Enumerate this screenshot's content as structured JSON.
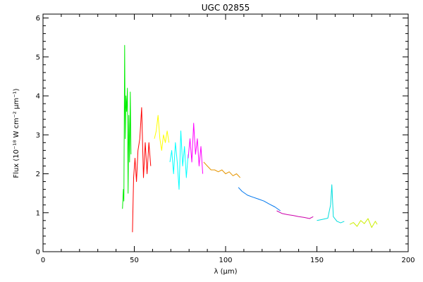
{
  "chart_data": {
    "type": "line",
    "title": "UGC 02855",
    "xlabel_text": "λ (μm)",
    "ylabel_text": "Flux (10⁻¹⁸ W cm⁻² μm⁻¹)",
    "xlim": [
      0,
      200
    ],
    "ylim": [
      0,
      6.1
    ],
    "x_ticks": [
      0,
      50,
      100,
      150,
      200
    ],
    "y_ticks": [
      0,
      1,
      2,
      3,
      4,
      5,
      6
    ],
    "grid": false,
    "legend": "none",
    "series": [
      {
        "color": "#00ee00",
        "x": [
          43.5,
          44.0,
          44.3,
          44.7,
          45.0,
          45.4,
          45.8,
          46.2,
          46.6,
          47.0,
          47.4,
          47.8,
          48.2
        ],
        "y": [
          1.1,
          1.6,
          1.3,
          5.3,
          2.9,
          4.0,
          3.6,
          4.2,
          1.5,
          3.5,
          2.3,
          4.1,
          2.5
        ]
      },
      {
        "color": "#ff0000",
        "x": [
          49.0,
          49.6,
          50.4,
          51.2,
          52.0,
          53.0,
          54.0,
          55.0,
          56.0,
          57.0,
          58.0,
          59.0
        ],
        "y": [
          0.5,
          1.9,
          2.4,
          1.8,
          2.6,
          2.9,
          3.7,
          1.9,
          2.8,
          2.0,
          2.8,
          2.2
        ]
      },
      {
        "color": "#ffff00",
        "x": [
          61.0,
          62.0,
          63.0,
          64.0,
          65.0,
          66.0,
          67.0,
          68.0,
          69.0
        ],
        "y": [
          2.9,
          3.1,
          3.5,
          2.9,
          2.6,
          3.0,
          2.8,
          3.1,
          2.8
        ]
      },
      {
        "color": "#00ffff",
        "x": [
          69.5,
          70.5,
          71.5,
          72.5,
          73.5,
          74.5,
          75.5,
          76.5,
          77.5,
          78.5,
          79.5
        ],
        "y": [
          2.3,
          2.6,
          2.0,
          2.8,
          2.3,
          1.6,
          3.1,
          2.2,
          2.7,
          1.9,
          2.5
        ]
      },
      {
        "color": "#ff00ff",
        "x": [
          79.5,
          80.5,
          81.5,
          82.5,
          83.5,
          84.5,
          85.5,
          86.5,
          87.5
        ],
        "y": [
          2.4,
          2.9,
          2.3,
          3.3,
          2.5,
          2.9,
          2.2,
          2.7,
          2.0
        ]
      },
      {
        "color": "#e69500",
        "x": [
          88,
          90,
          92,
          94,
          96,
          98,
          100,
          102,
          104,
          106,
          108
        ],
        "y": [
          2.3,
          2.2,
          2.1,
          2.1,
          2.05,
          2.1,
          2.0,
          2.05,
          1.95,
          2.0,
          1.9
        ]
      },
      {
        "color": "#0077ee",
        "x": [
          107,
          109,
          112,
          115,
          118,
          121,
          124,
          127,
          130
        ],
        "y": [
          1.65,
          1.55,
          1.45,
          1.4,
          1.35,
          1.3,
          1.22,
          1.15,
          1.05
        ]
      },
      {
        "color": "#cc00aa",
        "x": [
          128,
          131,
          134,
          137,
          140,
          143,
          146,
          148
        ],
        "y": [
          1.05,
          0.98,
          0.95,
          0.93,
          0.9,
          0.88,
          0.85,
          0.9
        ]
      },
      {
        "color": "#00dddd",
        "x": [
          150,
          152,
          154,
          156,
          157.5,
          158.2,
          159,
          161,
          163,
          165
        ],
        "y": [
          0.8,
          0.82,
          0.84,
          0.86,
          1.2,
          1.72,
          0.9,
          0.78,
          0.74,
          0.78
        ]
      },
      {
        "color": "#ccee00",
        "x": [
          168,
          170,
          172,
          174,
          176,
          178,
          180,
          182,
          183
        ],
        "y": [
          0.7,
          0.75,
          0.65,
          0.8,
          0.72,
          0.85,
          0.62,
          0.78,
          0.7
        ]
      }
    ]
  }
}
